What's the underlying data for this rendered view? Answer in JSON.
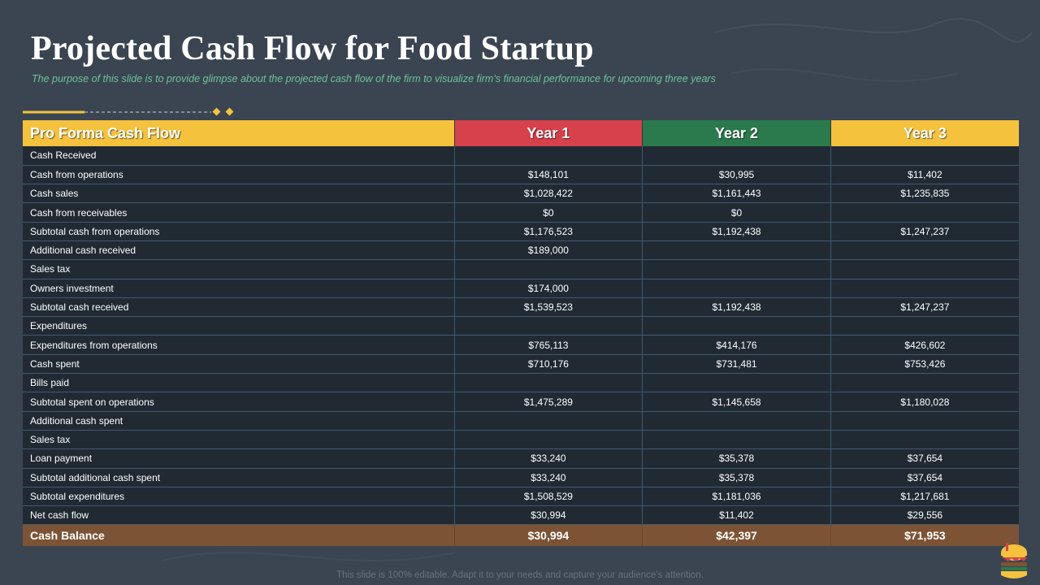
{
  "page": {
    "title": "Projected Cash Flow for Food Startup",
    "subtitle": "The purpose of this slide is to provide glimpse about the projected cash flow of the firm to visualize firm’s financial performance for upcoming three years",
    "footer": "This slide is 100% editable. Adapt it to your needs and capture your audience’s attention."
  },
  "colors": {
    "background": "#3a4551",
    "header_label": "#f5c23e",
    "header_year1": "#d6414b",
    "header_year2": "#2a7a4d",
    "header_year3": "#f5c23e",
    "total_row": "#7c5335",
    "subtitle": "#6fc39a"
  },
  "table": {
    "headers": [
      "Pro Forma Cash Flow",
      "Year 1",
      "Year 2",
      "Year 3"
    ],
    "rows": [
      [
        "Cash Received",
        "",
        "",
        ""
      ],
      [
        "Cash from operations",
        "$148,101",
        "$30,995",
        "$11,402"
      ],
      [
        "Cash sales",
        "$1,028,422",
        "$1,161,443",
        "$1,235,835"
      ],
      [
        "Cash from receivables",
        "$0",
        "$0",
        ""
      ],
      [
        "Subtotal cash from operations",
        "$1,176,523",
        "$1,192,438",
        "$1,247,237"
      ],
      [
        "Additional cash received",
        "$189,000",
        "",
        ""
      ],
      [
        "Sales tax",
        "",
        "",
        ""
      ],
      [
        "Owners investment",
        "$174,000",
        "",
        ""
      ],
      [
        "Subtotal cash received",
        "$1,539,523",
        "$1,192,438",
        "$1,247,237"
      ],
      [
        "Expenditures",
        "",
        "",
        ""
      ],
      [
        "Expenditures from operations",
        "$765,113",
        "$414,176",
        "$426,602"
      ],
      [
        "Cash spent",
        "$710,176",
        "$731,481",
        "$753,426"
      ],
      [
        "Bills paid",
        "",
        "",
        ""
      ],
      [
        "Subtotal spent on operations",
        "$1,475,289",
        "$1,145,658",
        "$1,180,028"
      ],
      [
        "Additional cash spent",
        "",
        "",
        ""
      ],
      [
        "Sales tax",
        "",
        "",
        ""
      ],
      [
        "Loan payment",
        "$33,240",
        "$35,378",
        "$37,654"
      ],
      [
        "Subtotal additional cash spent",
        "$33,240",
        "$35,378",
        "$37,654"
      ],
      [
        "Subtotal expenditures",
        "$1,508,529",
        "$1,181,036",
        "$1,217,681"
      ],
      [
        "Net cash flow",
        "$30,994",
        "$11,402",
        "$29,556"
      ]
    ],
    "total": [
      "Cash Balance",
      "$30,994",
      "$42,397",
      "$71,953"
    ]
  }
}
